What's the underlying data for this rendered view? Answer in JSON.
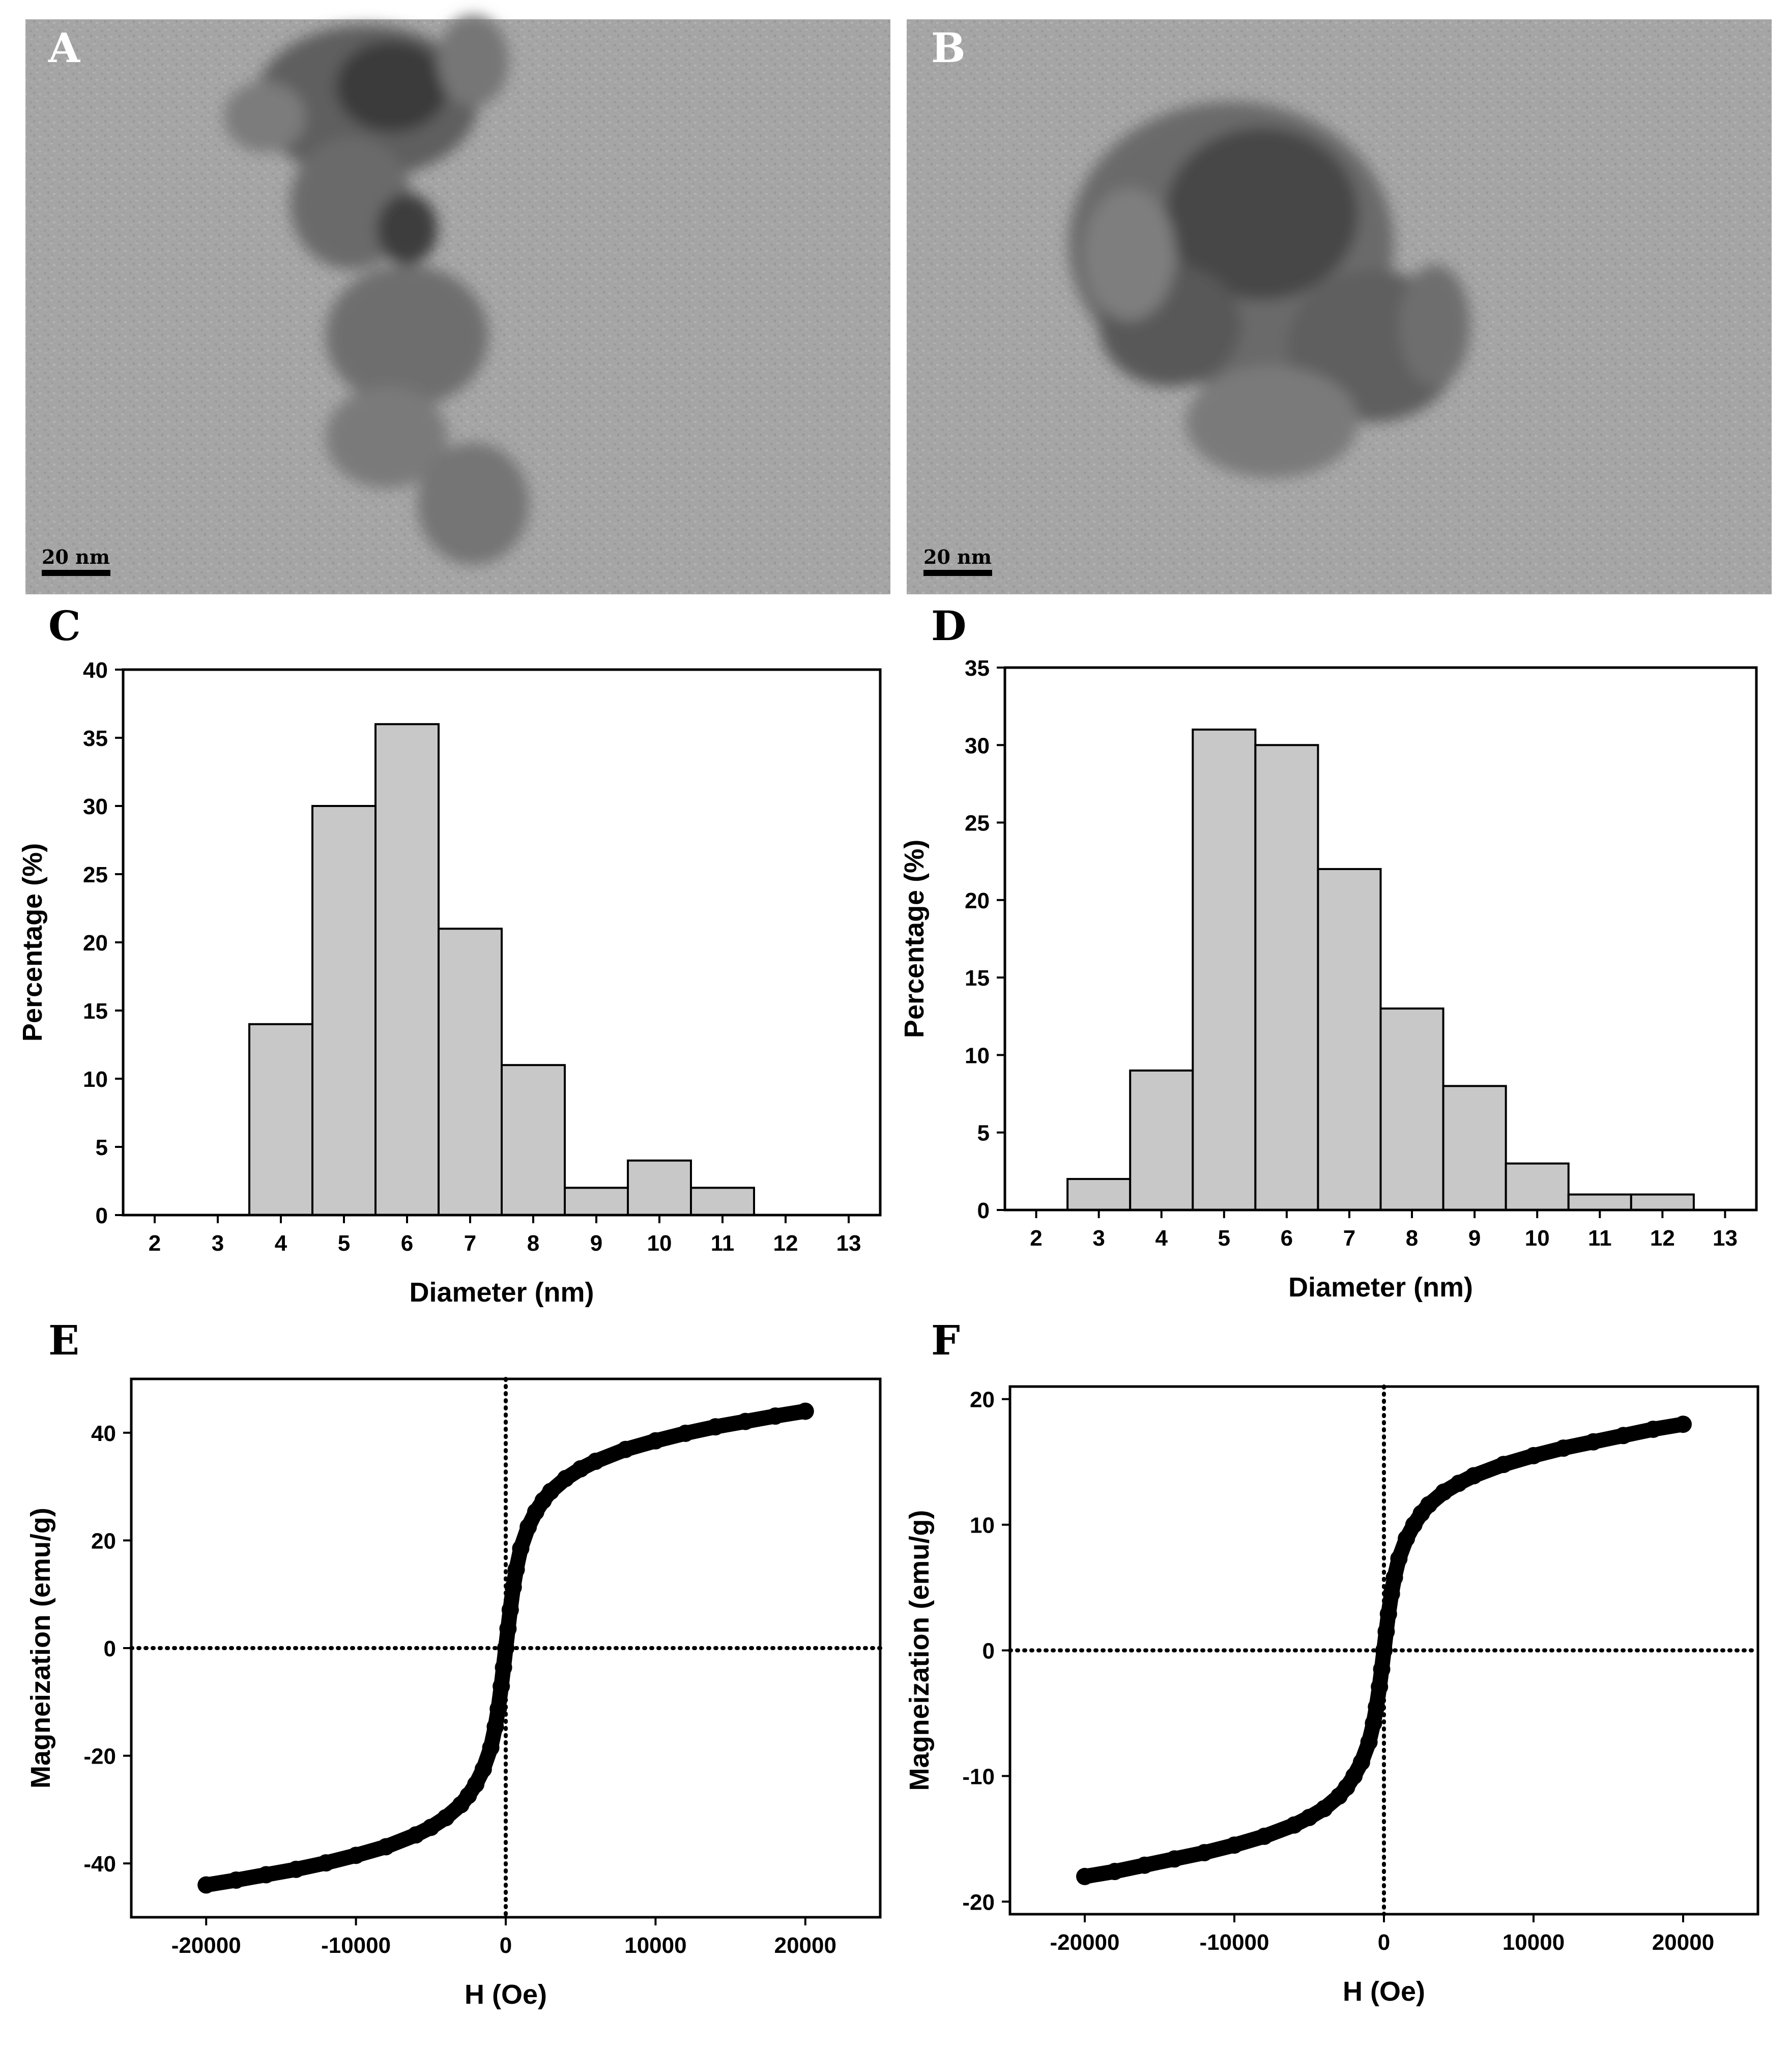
{
  "panels": {
    "A": {
      "label": "A",
      "scale_bar": "20 nm"
    },
    "B": {
      "label": "B",
      "scale_bar": "20 nm"
    }
  },
  "chart_data": [
    {
      "panel": "C",
      "type": "bar",
      "xlabel": "Diameter (nm)",
      "ylabel": "Percentage (%)",
      "x_ticks": [
        2,
        3,
        4,
        5,
        6,
        7,
        8,
        9,
        10,
        11,
        12,
        13
      ],
      "xlim": [
        1.5,
        13.5
      ],
      "ylim": [
        0,
        40
      ],
      "y_ticks": [
        0,
        5,
        10,
        15,
        20,
        25,
        30,
        35,
        40
      ],
      "categories": [
        4,
        5,
        6,
        7,
        8,
        9,
        10,
        11
      ],
      "values": [
        14,
        30,
        36,
        21,
        11,
        2,
        4,
        2
      ],
      "bar_color": "#c8c8c8",
      "grid": false
    },
    {
      "panel": "D",
      "type": "bar",
      "xlabel": "Diameter (nm)",
      "ylabel": "Percentage (%)",
      "x_ticks": [
        2,
        3,
        4,
        5,
        6,
        7,
        8,
        9,
        10,
        11,
        12,
        13
      ],
      "xlim": [
        1.5,
        13.5
      ],
      "ylim": [
        0,
        35
      ],
      "y_ticks": [
        0,
        5,
        10,
        15,
        20,
        25,
        30,
        35
      ],
      "categories": [
        3,
        4,
        5,
        6,
        7,
        8,
        9,
        10,
        11,
        12
      ],
      "values": [
        2,
        9,
        31,
        30,
        22,
        13,
        8,
        3,
        1,
        1
      ],
      "bar_color": "#c8c8c8",
      "grid": false
    },
    {
      "panel": "E",
      "type": "scatter",
      "xlabel": "H (Oe)",
      "ylabel": "Magneization (emu/g)",
      "xlim": [
        -25000,
        25000
      ],
      "ylim": [
        -50,
        50
      ],
      "x_ticks": [
        -20000,
        -10000,
        0,
        10000,
        20000
      ],
      "y_ticks": [
        -40,
        -20,
        0,
        20,
        40
      ],
      "x": [
        -20000,
        -18000,
        -16000,
        -14000,
        -12000,
        -10000,
        -8000,
        -6000,
        -5000,
        -4000,
        -3000,
        -2500,
        -2000,
        -1500,
        -1000,
        -700,
        -500,
        -300,
        -150,
        0,
        150,
        300,
        500,
        700,
        1000,
        1500,
        2000,
        2500,
        3000,
        4000,
        5000,
        6000,
        8000,
        10000,
        12000,
        14000,
        16000,
        18000,
        20000
      ],
      "y": [
        -44,
        -43.1,
        -42.1,
        -41.1,
        -39.9,
        -38.5,
        -36.9,
        -34.7,
        -33.3,
        -31.5,
        -29.1,
        -27.4,
        -25.3,
        -22.5,
        -18.5,
        -14.6,
        -11.3,
        -7.1,
        -3.6,
        0,
        3.6,
        7.1,
        11.3,
        14.6,
        18.5,
        22.5,
        25.3,
        27.4,
        29.1,
        31.5,
        33.3,
        34.7,
        36.9,
        38.5,
        39.9,
        41.1,
        42.1,
        43.1,
        44
      ],
      "reference_lines": "dotted lines at H = 0 and M = 0",
      "grid": false
    },
    {
      "panel": "F",
      "type": "scatter",
      "xlabel": "H (Oe)",
      "ylabel": "Magneization (emu/g)",
      "xlim": [
        -25000,
        25000
      ],
      "ylim": [
        -21,
        21
      ],
      "x_ticks": [
        -20000,
        -10000,
        0,
        10000,
        20000
      ],
      "y_ticks": [
        -20,
        -10,
        0,
        10,
        20
      ],
      "x": [
        -20000,
        -18000,
        -16000,
        -14000,
        -12000,
        -10000,
        -8000,
        -6000,
        -5000,
        -4000,
        -3000,
        -2500,
        -2000,
        -1500,
        -1000,
        -700,
        -500,
        -300,
        -150,
        0,
        150,
        300,
        500,
        700,
        1000,
        1500,
        2000,
        2500,
        3000,
        4000,
        5000,
        6000,
        8000,
        10000,
        12000,
        14000,
        16000,
        18000,
        20000
      ],
      "y": [
        -18,
        -17.6,
        -17.1,
        -16.6,
        -16.1,
        -15.5,
        -14.8,
        -13.9,
        -13.3,
        -12.6,
        -11.6,
        -10.9,
        -10,
        -8.9,
        -7.3,
        -5.8,
        -4.5,
        -2.9,
        -1.5,
        0,
        1.5,
        2.9,
        4.5,
        5.8,
        7.3,
        8.9,
        10,
        10.9,
        11.6,
        12.6,
        13.3,
        13.9,
        14.8,
        15.5,
        16.1,
        16.6,
        17.1,
        17.6,
        18
      ],
      "reference_lines": "dotted lines at H = 0 and M = 0",
      "grid": false
    }
  ]
}
